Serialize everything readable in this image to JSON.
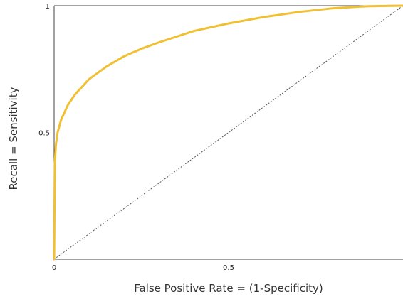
{
  "chart_data": {
    "type": "line",
    "title": "",
    "xlabel": "False Positive Rate = (1-Specificity)",
    "ylabel": "Recall = Sensitivity",
    "xlim": [
      0,
      1
    ],
    "ylim": [
      0,
      1
    ],
    "x_ticks": [
      "0",
      "0.5"
    ],
    "y_ticks": [
      "0.5",
      "1"
    ],
    "grid": false,
    "legend": "none",
    "series": [
      {
        "color": "#f0c030",
        "x": [
          0,
          0.002,
          0.005,
          0.01,
          0.02,
          0.04,
          0.06,
          0.08,
          0.1,
          0.15,
          0.2,
          0.25,
          0.3,
          0.4,
          0.5,
          0.6,
          0.7,
          0.8,
          0.9,
          1.0
        ],
        "y": [
          0,
          0.38,
          0.45,
          0.5,
          0.55,
          0.61,
          0.65,
          0.68,
          0.71,
          0.76,
          0.8,
          0.83,
          0.855,
          0.9,
          0.93,
          0.955,
          0.975,
          0.99,
          0.998,
          1.0
        ]
      },
      {
        "style": "dotted",
        "color": "#555555",
        "x": [
          0,
          1
        ],
        "y": [
          0,
          1
        ]
      }
    ]
  }
}
